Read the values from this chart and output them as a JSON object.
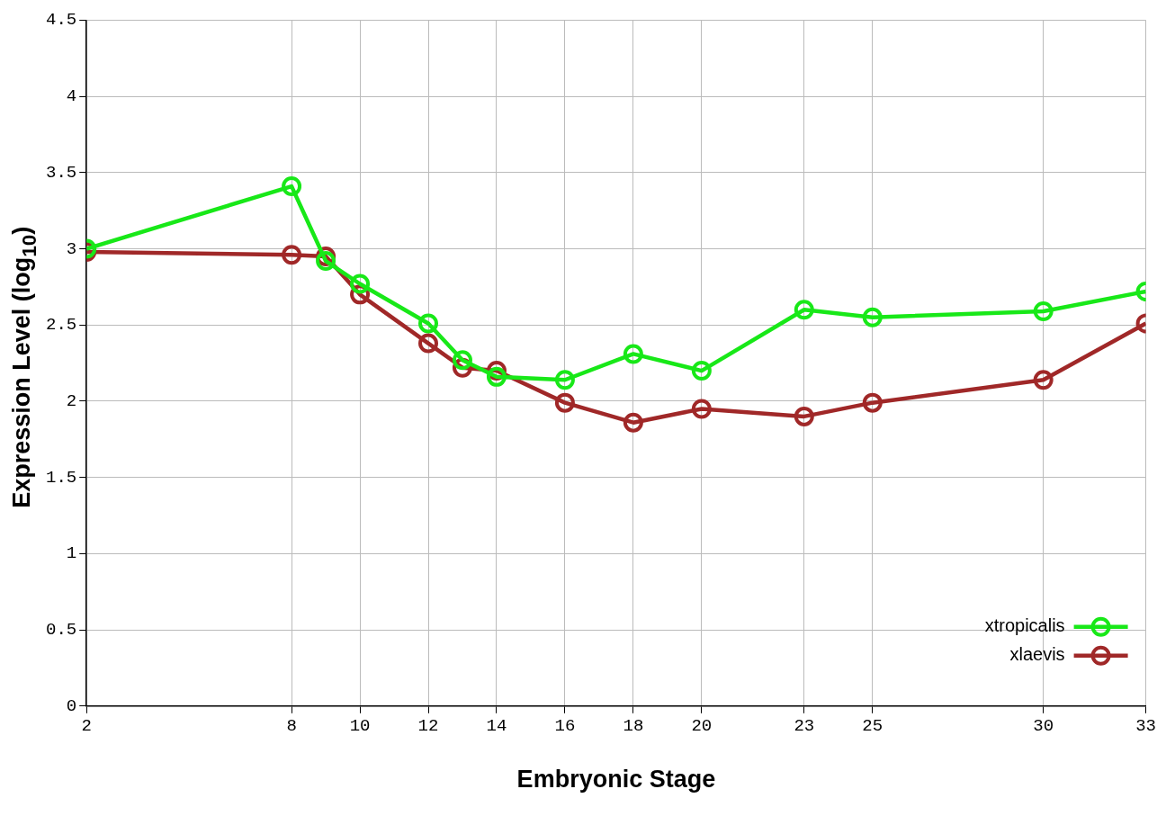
{
  "chart_data": {
    "type": "line",
    "xlabel": "Embryonic Stage",
    "ylabel": "Expression Level (log$_{10}$)",
    "xlim": [
      2,
      33
    ],
    "xticks": [
      2,
      8,
      10,
      12,
      14,
      16,
      18,
      20,
      23,
      25,
      30,
      33
    ],
    "ylim": [
      0,
      4.5
    ],
    "yticks": [
      0,
      0.5,
      1,
      1.5,
      2,
      2.5,
      3,
      3.5,
      4,
      4.5
    ],
    "x": [
      2,
      8,
      9,
      10,
      12,
      13,
      14,
      16,
      18,
      20,
      23,
      25,
      30,
      33
    ],
    "series": [
      {
        "name": "xtropicalis",
        "color": "#18e818",
        "values": [
          3.0,
          3.41,
          2.92,
          2.77,
          2.51,
          2.27,
          2.16,
          2.14,
          2.31,
          2.2,
          2.6,
          2.55,
          2.59,
          2.72
        ]
      },
      {
        "name": "xlaevis",
        "color": "#a02828",
        "values": [
          2.98,
          2.96,
          2.95,
          2.7,
          2.38,
          2.22,
          2.2,
          1.99,
          1.86,
          1.95,
          1.9,
          1.99,
          2.14,
          2.51
        ]
      }
    ],
    "grid": true,
    "legend": "bottom right",
    "marker": "circle",
    "line_style": "solid"
  }
}
